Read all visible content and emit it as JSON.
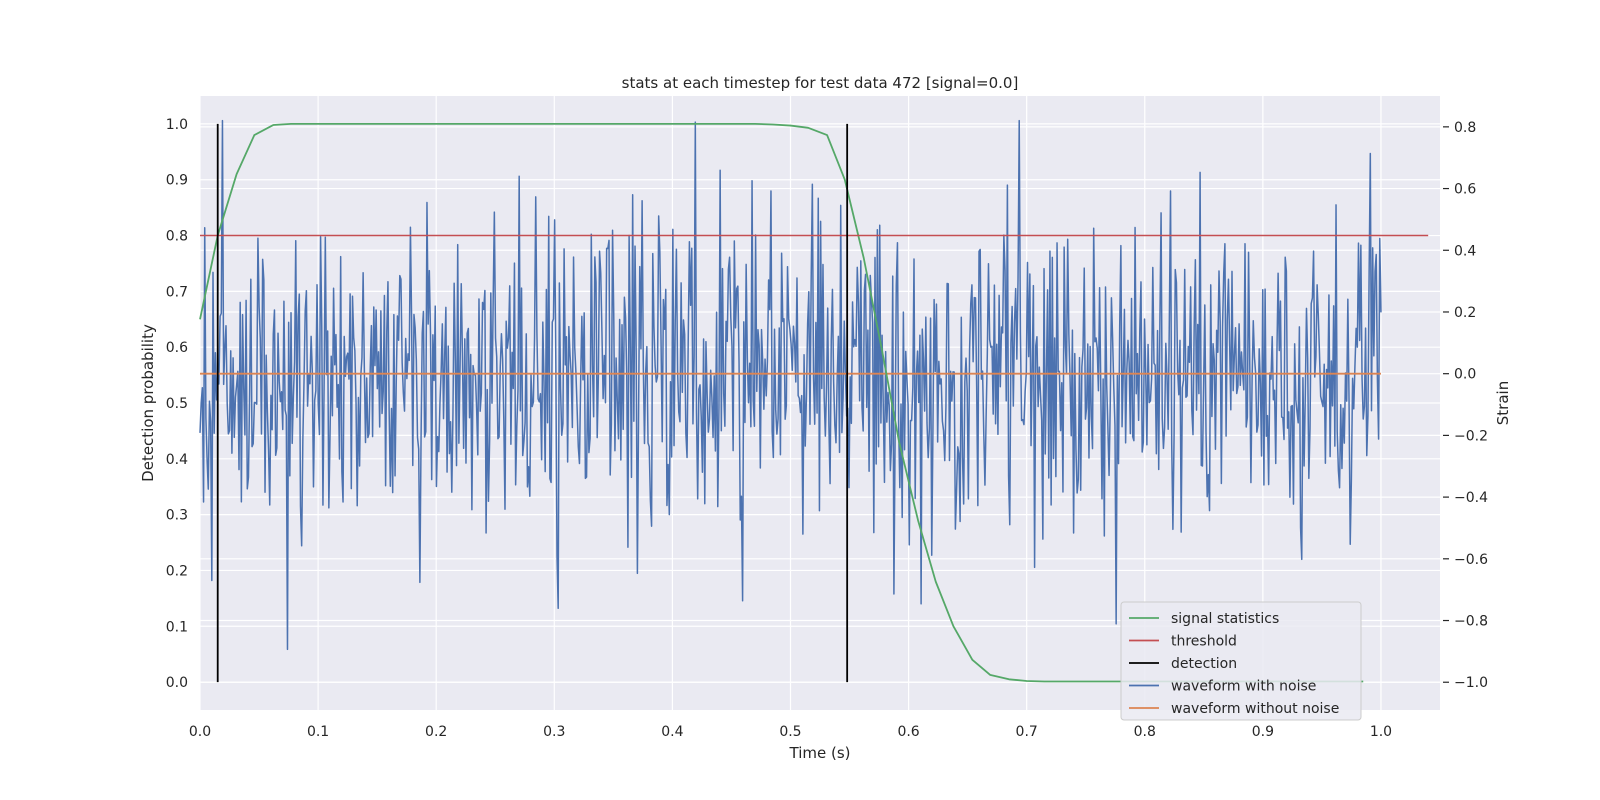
{
  "chart_data": {
    "type": "line",
    "title": "stats at each timestep for test data 472 [signal=0.0]",
    "xlabel": "Time (s)",
    "ylabel_left": "Detection probability",
    "ylabel_right": "Strain",
    "xlim": [
      0.0,
      1.05
    ],
    "ylim_left": [
      -0.05,
      1.05
    ],
    "ylim_right": [
      -1.09,
      0.9
    ],
    "x_ticks": [
      "0.0",
      "0.1",
      "0.2",
      "0.3",
      "0.4",
      "0.5",
      "0.6",
      "0.7",
      "0.8",
      "0.9",
      "1.0"
    ],
    "y_ticks_left": [
      "0.0",
      "0.1",
      "0.2",
      "0.3",
      "0.4",
      "0.5",
      "0.6",
      "0.7",
      "0.8",
      "0.9",
      "1.0"
    ],
    "y_ticks_right": [
      "−1.0",
      "−0.8",
      "−0.6",
      "−0.4",
      "−0.2",
      "0.0",
      "0.2",
      "0.4",
      "0.6",
      "0.8"
    ],
    "grid": true,
    "legend_position": "lower-right",
    "series": [
      {
        "name": "signal statistics",
        "axis": "left",
        "color": "#55a868",
        "x": [
          0.0,
          0.015,
          0.031,
          0.046,
          0.062,
          0.077,
          0.092,
          0.108,
          0.2,
          0.3,
          0.4,
          0.45,
          0.47,
          0.485,
          0.5,
          0.515,
          0.531,
          0.546,
          0.562,
          0.577,
          0.592,
          0.608,
          0.623,
          0.638,
          0.654,
          0.669,
          0.685,
          0.7,
          0.715,
          0.8,
          0.9,
          0.985
        ],
        "y": [
          0.65,
          0.8,
          0.91,
          0.98,
          0.998,
          1.0,
          1.0,
          1.0,
          1.0,
          1.0,
          1.0,
          1.0,
          1.0,
          0.999,
          0.997,
          0.993,
          0.98,
          0.9,
          0.76,
          0.6,
          0.43,
          0.29,
          0.18,
          0.1,
          0.04,
          0.013,
          0.005,
          0.002,
          0.001,
          0.001,
          0.001,
          0.001
        ]
      },
      {
        "name": "threshold",
        "axis": "left",
        "color": "#c44e52",
        "x": [
          0.0,
          1.04
        ],
        "y": [
          0.8,
          0.8
        ]
      },
      {
        "name": "detection",
        "axis": "left",
        "color": "#000000",
        "segments": [
          {
            "x": 0.015,
            "y": [
              0.0,
              1.0
            ]
          },
          {
            "x": 0.548,
            "y": [
              0.0,
              1.0
            ]
          }
        ]
      },
      {
        "name": "waveform with noise",
        "axis": "right",
        "color": "#4c72b0",
        "x": [
          0.0,
          1.0
        ],
        "noise_amplitude": 0.25,
        "noise_min": -0.9,
        "noise_max": 0.82,
        "samples": 1000
      },
      {
        "name": "waveform without noise",
        "axis": "right",
        "color": "#dd8452",
        "x": [
          0.0,
          1.0
        ],
        "y": [
          0.0,
          0.0
        ]
      }
    ]
  }
}
